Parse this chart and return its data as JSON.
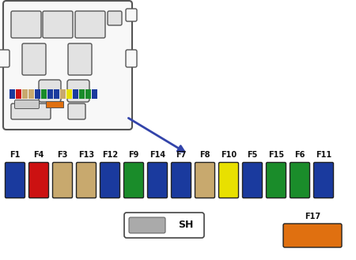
{
  "fuses": [
    {
      "label": "F1",
      "color": "#1a3a9e"
    },
    {
      "label": "F4",
      "color": "#cc1111"
    },
    {
      "label": "F3",
      "color": "#c8a96e"
    },
    {
      "label": "F13",
      "color": "#c8a96e"
    },
    {
      "label": "F12",
      "color": "#1a3a9e"
    },
    {
      "label": "F9",
      "color": "#1a8c2a"
    },
    {
      "label": "F14",
      "color": "#1a3a9e"
    },
    {
      "label": "F7",
      "color": "#1a3a9e"
    },
    {
      "label": "F8",
      "color": "#c8a96e"
    },
    {
      "label": "F10",
      "color": "#e8e000"
    },
    {
      "label": "F5",
      "color": "#1a3a9e"
    },
    {
      "label": "F15",
      "color": "#1a8c2a"
    },
    {
      "label": "F6",
      "color": "#1a8c2a"
    },
    {
      "label": "F11",
      "color": "#1a3a9e"
    }
  ],
  "strip_colors": [
    "#1a3a9e",
    "#cc1111",
    "#c8a96e",
    "#c8a96e",
    "#1a3a9e",
    "#1a8c2a",
    "#1a3a9e",
    "#1a3a9e",
    "#c8a96e",
    "#e8e000",
    "#1a3a9e",
    "#1a8c2a",
    "#1a8c2a",
    "#1a3a9e"
  ],
  "sh_label": "SH",
  "sh_color": "#aaaaaa",
  "f17_label": "F17",
  "f17_color": "#e07010",
  "bg_color": "#ffffff",
  "label_fontsize": 7,
  "label_color": "#111111",
  "fuse_edge_color": "#222222",
  "box_face": "#f8f8f8",
  "box_edge": "#555555",
  "inner_face": "#e2e2e2",
  "inner_edge": "#555555"
}
